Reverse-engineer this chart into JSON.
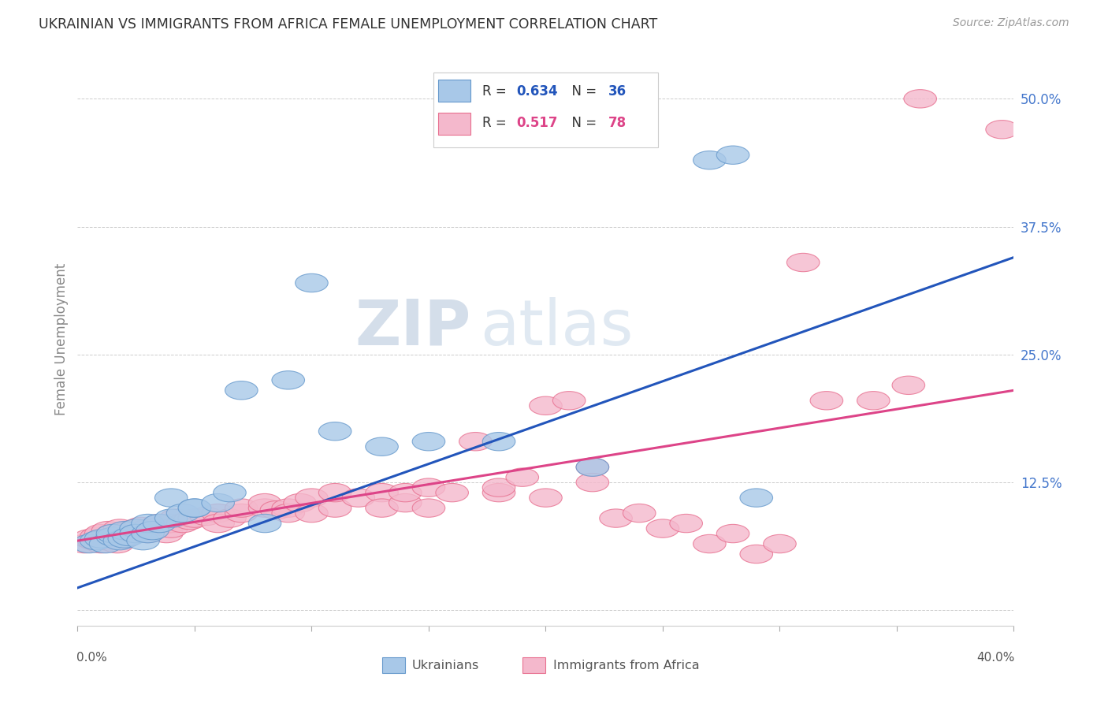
{
  "title": "UKRAINIAN VS IMMIGRANTS FROM AFRICA FEMALE UNEMPLOYMENT CORRELATION CHART",
  "source": "Source: ZipAtlas.com",
  "ylabel": "Female Unemployment",
  "ytick_labels": [
    "",
    "12.5%",
    "25.0%",
    "37.5%",
    "50.0%"
  ],
  "ytick_values": [
    0,
    0.125,
    0.25,
    0.375,
    0.5
  ],
  "xlim": [
    0,
    0.4
  ],
  "ylim": [
    -0.015,
    0.545
  ],
  "legend_r1": "R = ",
  "legend_v1": "0.634",
  "legend_n1": "  N = ",
  "legend_nv1": "36",
  "legend_r2": "R = ",
  "legend_v2": "0.517",
  "legend_n2": "  N = ",
  "legend_nv2": "78",
  "blue_color": "#A8C8E8",
  "pink_color": "#F4B8CC",
  "blue_edge_color": "#6699CC",
  "pink_edge_color": "#E87090",
  "blue_line_color": "#2255BB",
  "pink_line_color": "#DD4488",
  "watermark_zip": "#C0CCDD",
  "watermark_atlas": "#A8BDD0",
  "blue_line_y_start": 0.022,
  "blue_line_y_end": 0.345,
  "pink_line_y_start": 0.068,
  "pink_line_y_end": 0.215,
  "blue_scatter_x": [
    0.005,
    0.008,
    0.01,
    0.012,
    0.015,
    0.015,
    0.018,
    0.02,
    0.02,
    0.022,
    0.025,
    0.025,
    0.028,
    0.03,
    0.03,
    0.032,
    0.035,
    0.04,
    0.04,
    0.045,
    0.05,
    0.05,
    0.06,
    0.065,
    0.07,
    0.08,
    0.09,
    0.1,
    0.11,
    0.13,
    0.15,
    0.18,
    0.22,
    0.27,
    0.28,
    0.29
  ],
  "blue_scatter_y": [
    0.065,
    0.068,
    0.07,
    0.065,
    0.072,
    0.075,
    0.068,
    0.07,
    0.078,
    0.072,
    0.08,
    0.075,
    0.068,
    0.075,
    0.085,
    0.078,
    0.085,
    0.09,
    0.11,
    0.095,
    0.1,
    0.1,
    0.105,
    0.115,
    0.215,
    0.085,
    0.225,
    0.32,
    0.175,
    0.16,
    0.165,
    0.165,
    0.14,
    0.44,
    0.445,
    0.11
  ],
  "pink_scatter_x": [
    0.003,
    0.005,
    0.007,
    0.008,
    0.01,
    0.01,
    0.012,
    0.013,
    0.015,
    0.015,
    0.017,
    0.018,
    0.02,
    0.02,
    0.022,
    0.025,
    0.025,
    0.027,
    0.028,
    0.03,
    0.03,
    0.032,
    0.035,
    0.035,
    0.038,
    0.04,
    0.04,
    0.042,
    0.045,
    0.048,
    0.05,
    0.055,
    0.06,
    0.06,
    0.065,
    0.07,
    0.07,
    0.08,
    0.08,
    0.085,
    0.09,
    0.09,
    0.095,
    0.1,
    0.1,
    0.11,
    0.11,
    0.12,
    0.13,
    0.13,
    0.14,
    0.14,
    0.15,
    0.15,
    0.16,
    0.17,
    0.18,
    0.18,
    0.19,
    0.2,
    0.2,
    0.21,
    0.22,
    0.22,
    0.23,
    0.24,
    0.25,
    0.26,
    0.27,
    0.28,
    0.29,
    0.3,
    0.31,
    0.32,
    0.34,
    0.355,
    0.36,
    0.395
  ],
  "pink_scatter_y": [
    0.065,
    0.07,
    0.068,
    0.072,
    0.065,
    0.075,
    0.068,
    0.078,
    0.07,
    0.075,
    0.065,
    0.08,
    0.07,
    0.075,
    0.078,
    0.08,
    0.075,
    0.082,
    0.078,
    0.075,
    0.08,
    0.078,
    0.085,
    0.082,
    0.075,
    0.085,
    0.08,
    0.09,
    0.085,
    0.088,
    0.09,
    0.092,
    0.095,
    0.085,
    0.09,
    0.095,
    0.1,
    0.1,
    0.105,
    0.098,
    0.1,
    0.095,
    0.105,
    0.11,
    0.095,
    0.1,
    0.115,
    0.11,
    0.115,
    0.1,
    0.105,
    0.115,
    0.12,
    0.1,
    0.115,
    0.165,
    0.115,
    0.12,
    0.13,
    0.2,
    0.11,
    0.205,
    0.14,
    0.125,
    0.09,
    0.095,
    0.08,
    0.085,
    0.065,
    0.075,
    0.055,
    0.065,
    0.34,
    0.205,
    0.205,
    0.22,
    0.5,
    0.47
  ],
  "grid_color": "#CCCCCC",
  "tick_color": "#AAAAAA",
  "yaxis_label_color": "#888888",
  "ytick_color": "#4477CC"
}
